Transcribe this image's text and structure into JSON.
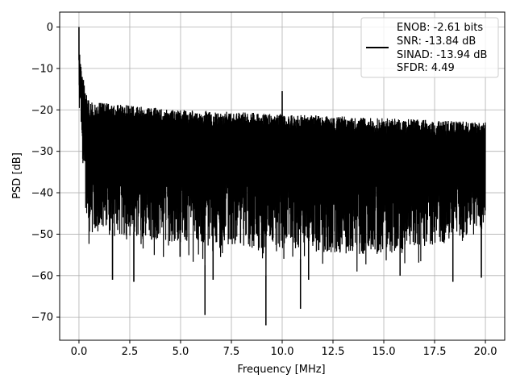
{
  "chart_data": {
    "type": "line",
    "xlabel": "Frequency [MHz]",
    "ylabel": "PSD [dB]",
    "xlim": [
      -0.95,
      20.95
    ],
    "ylim": [
      -75.6,
      3.6
    ],
    "xticks": [
      0.0,
      2.5,
      5.0,
      7.5,
      10.0,
      12.5,
      15.0,
      17.5,
      20.0
    ],
    "xtick_labels": [
      "0.0",
      "2.5",
      "5.0",
      "7.5",
      "10.0",
      "12.5",
      "15.0",
      "17.5",
      "20.0"
    ],
    "yticks": [
      0,
      -10,
      -20,
      -30,
      -40,
      -50,
      -60,
      -70
    ],
    "ytick_labels": [
      "0",
      "−10",
      "−20",
      "−30",
      "−40",
      "−50",
      "−60",
      "−70"
    ],
    "grid": true,
    "legend_position": "top-right",
    "series": [
      {
        "color": "#000000",
        "x_range": [
          0.0,
          20.0
        ],
        "peaks": [
          {
            "x": 0.0,
            "y": 0
          },
          {
            "x": 10.0,
            "y": -15.5
          }
        ],
        "deep_dips": [
          {
            "x": 1.65,
            "y": -61
          },
          {
            "x": 2.7,
            "y": -61.5
          },
          {
            "x": 6.2,
            "y": -69.5
          },
          {
            "x": 6.6,
            "y": -61
          },
          {
            "x": 9.2,
            "y": -72
          },
          {
            "x": 10.9,
            "y": -68
          },
          {
            "x": 11.3,
            "y": -61
          },
          {
            "x": 15.8,
            "y": -60
          },
          {
            "x": 18.4,
            "y": -61.5
          },
          {
            "x": 19.8,
            "y": -60.5
          }
        ],
        "upper_envelope_db": [
          {
            "x": 0.1,
            "y": -13
          },
          {
            "x": 0.5,
            "y": -18
          },
          {
            "x": 5.0,
            "y": -20
          },
          {
            "x": 10.0,
            "y": -21
          },
          {
            "x": 15.0,
            "y": -22
          },
          {
            "x": 20.0,
            "y": -23
          }
        ],
        "lower_envelope_db": [
          {
            "x": 0.3,
            "y": -50
          },
          {
            "x": 5.0,
            "y": -52
          },
          {
            "x": 10.0,
            "y": -54
          },
          {
            "x": 15.0,
            "y": -55
          },
          {
            "x": 20.0,
            "y": -50
          }
        ]
      }
    ],
    "legend": {
      "lines": [
        "ENOB: -2.61 bits",
        "SNR: -13.84 dB",
        "SINAD: -13.94 dB",
        "SFDR: 4.49"
      ]
    }
  }
}
